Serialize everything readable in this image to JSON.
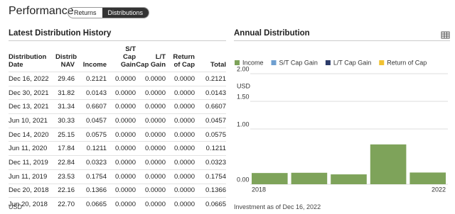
{
  "header": {
    "title": "Performance",
    "tabs": [
      "Returns",
      "Distributions"
    ]
  },
  "table": {
    "title": "Latest Distribution History",
    "columns": [
      "Distribution\nDate",
      "Distrib\nNAV",
      "Income",
      "S/T\nCap Gain",
      "L/T\nCap Gain",
      "Return\nof Cap",
      "Total"
    ],
    "rows": [
      [
        "Dec 16, 2022",
        "29.46",
        "0.2121",
        "0.0000",
        "0.0000",
        "0.0000",
        "0.2121"
      ],
      [
        "Dec 30, 2021",
        "31.82",
        "0.0143",
        "0.0000",
        "0.0000",
        "0.0000",
        "0.0143"
      ],
      [
        "Dec 13, 2021",
        "31.34",
        "0.6607",
        "0.0000",
        "0.0000",
        "0.0000",
        "0.6607"
      ],
      [
        "Jun 10, 2021",
        "30.33",
        "0.0457",
        "0.0000",
        "0.0000",
        "0.0000",
        "0.0457"
      ],
      [
        "Dec 14, 2020",
        "25.15",
        "0.0575",
        "0.0000",
        "0.0000",
        "0.0000",
        "0.0575"
      ],
      [
        "Jun 11, 2020",
        "17.84",
        "0.1211",
        "0.0000",
        "0.0000",
        "0.0000",
        "0.1211"
      ],
      [
        "Dec 11, 2019",
        "22.84",
        "0.0323",
        "0.0000",
        "0.0000",
        "0.0000",
        "0.0323"
      ],
      [
        "Jun 11, 2019",
        "23.53",
        "0.1754",
        "0.0000",
        "0.0000",
        "0.0000",
        "0.1754"
      ],
      [
        "Dec 20, 2018",
        "22.16",
        "0.1366",
        "0.0000",
        "0.0000",
        "0.0000",
        "0.1366"
      ],
      [
        "Jun 20, 2018",
        "22.70",
        "0.0665",
        "0.0000",
        "0.0000",
        "0.0000",
        "0.0665"
      ]
    ],
    "footnote": "USD"
  },
  "chart_data": {
    "type": "bar",
    "title": "Annual Distribution",
    "y_unit": "USD",
    "categories": [
      "2018",
      null,
      null,
      null,
      "2022"
    ],
    "series": [
      {
        "name": "Income",
        "color": "#7ea35a",
        "values": [
          0.2031,
          0.2077,
          0.1786,
          0.7207,
          0.2121
        ]
      },
      {
        "name": "S/T Cap Gain",
        "color": "#6f9fd0",
        "values": [
          0,
          0,
          0,
          0,
          0
        ]
      },
      {
        "name": "L/T Cap Gain",
        "color": "#2c3b69",
        "values": [
          0,
          0,
          0,
          0,
          0
        ]
      },
      {
        "name": "Return of Cap",
        "color": "#f1c232",
        "values": [
          0,
          0,
          0,
          0,
          0
        ]
      }
    ],
    "stacked": true,
    "ylim": [
      0,
      2
    ],
    "yticks": [
      {
        "value": 0,
        "label": "0.00"
      },
      {
        "value": 1,
        "label": "1.00"
      },
      {
        "value": 1.5,
        "label": "1.50"
      },
      {
        "value": 2,
        "label": "2.00"
      }
    ],
    "grid": true,
    "footnote": "Investment as of Dec 16, 2022"
  }
}
